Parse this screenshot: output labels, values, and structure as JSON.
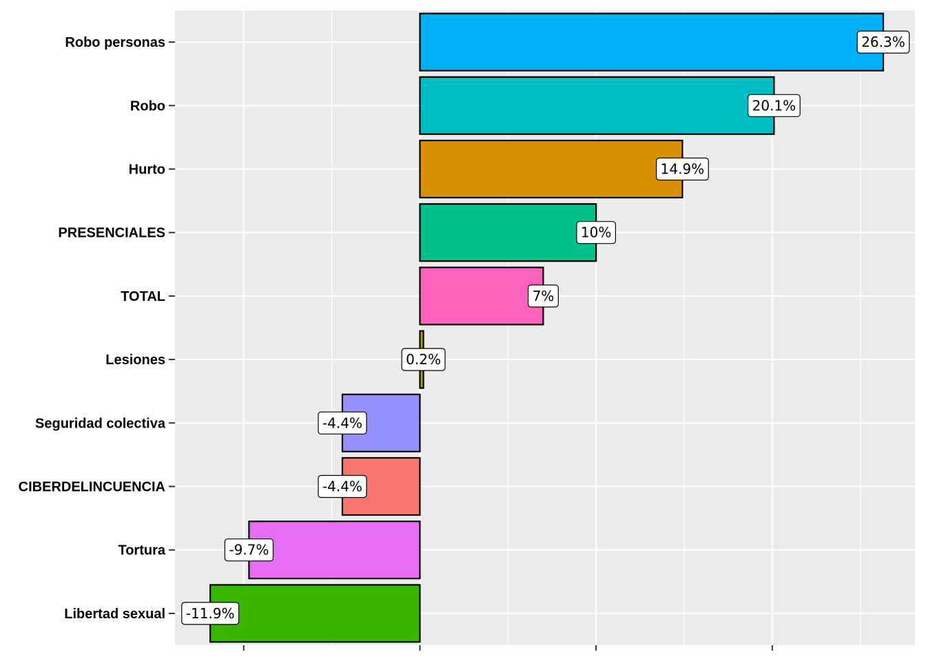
{
  "chart_data": {
    "type": "bar",
    "orientation": "horizontal",
    "title": "",
    "xlabel": "",
    "ylabel": "",
    "xlim": [
      -13.9,
      28.1
    ],
    "x_major_ticks": [
      -10,
      0,
      10,
      20
    ],
    "x_tick_labels_shown": false,
    "grid": true,
    "legend": "none",
    "categories": [
      "Robo personas",
      "Robo",
      "Hurto",
      "PRESENCIALES",
      "TOTAL",
      "Lesiones",
      "Seguridad colectiva",
      "CIBERDELINCUENCIA",
      "Tortura",
      "Libertad sexual"
    ],
    "values": [
      26.3,
      20.1,
      14.9,
      10,
      7,
      0.2,
      -4.4,
      -4.4,
      -9.7,
      -11.9
    ],
    "labels": [
      "26.3%",
      "20.1%",
      "14.9%",
      "10%",
      "7%",
      "0.2%",
      "-4.4%",
      "-4.4%",
      "-9.7%",
      "-11.9%"
    ],
    "colors": [
      "#00B0F6",
      "#00BFC4",
      "#D89000",
      "#00C08B",
      "#FF62BC",
      "#A3A500",
      "#9590FF",
      "#F8766D",
      "#E76BF3",
      "#39B600"
    ]
  }
}
